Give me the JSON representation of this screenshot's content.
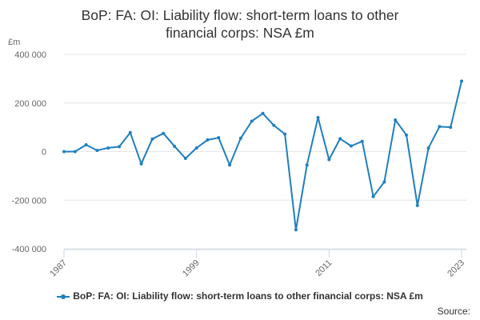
{
  "chart_data": {
    "type": "line",
    "title": "BoP: FA: OI: Liability flow: short-term loans to other financial corps: NSA £m",
    "title_lines": [
      "BoP: FA: OI: Liability flow: short-term loans to other",
      "financial corps: NSA £m"
    ],
    "unit_label": "£m",
    "x_tick_labels": [
      "1987",
      "1999",
      "2011",
      "2023"
    ],
    "y_tick_labels": [
      "400 000",
      "200 000",
      "0",
      "-200 000",
      "-400 000"
    ],
    "ylim": [
      -400000,
      400000
    ],
    "xlim": [
      1987,
      2023
    ],
    "grid": true,
    "legend_position": "bottom",
    "series": [
      {
        "name": "BoP: FA: OI: Liability flow: short-term loans to other financial corps: NSA £m",
        "color": "#1f7fbf",
        "x": [
          1987,
          1988,
          1989,
          1990,
          1991,
          1992,
          1993,
          1994,
          1995,
          1996,
          1997,
          1998,
          1999,
          2000,
          2001,
          2002,
          2003,
          2004,
          2005,
          2006,
          2007,
          2008,
          2009,
          2010,
          2011,
          2012,
          2013,
          2014,
          2015,
          2016,
          2017,
          2018,
          2019,
          2020,
          2021,
          2022,
          2023
        ],
        "values": [
          0,
          0,
          28000,
          5000,
          15000,
          20000,
          78000,
          -50000,
          52000,
          75000,
          22000,
          -28000,
          15000,
          48000,
          57000,
          -55000,
          55000,
          125000,
          157000,
          108000,
          72000,
          -322000,
          -55000,
          140000,
          -33000,
          53000,
          23000,
          42000,
          -185000,
          -125000,
          130000,
          68000,
          -222000,
          15000,
          103000,
          100000,
          290000
        ]
      }
    ]
  },
  "source_label": "Source:"
}
